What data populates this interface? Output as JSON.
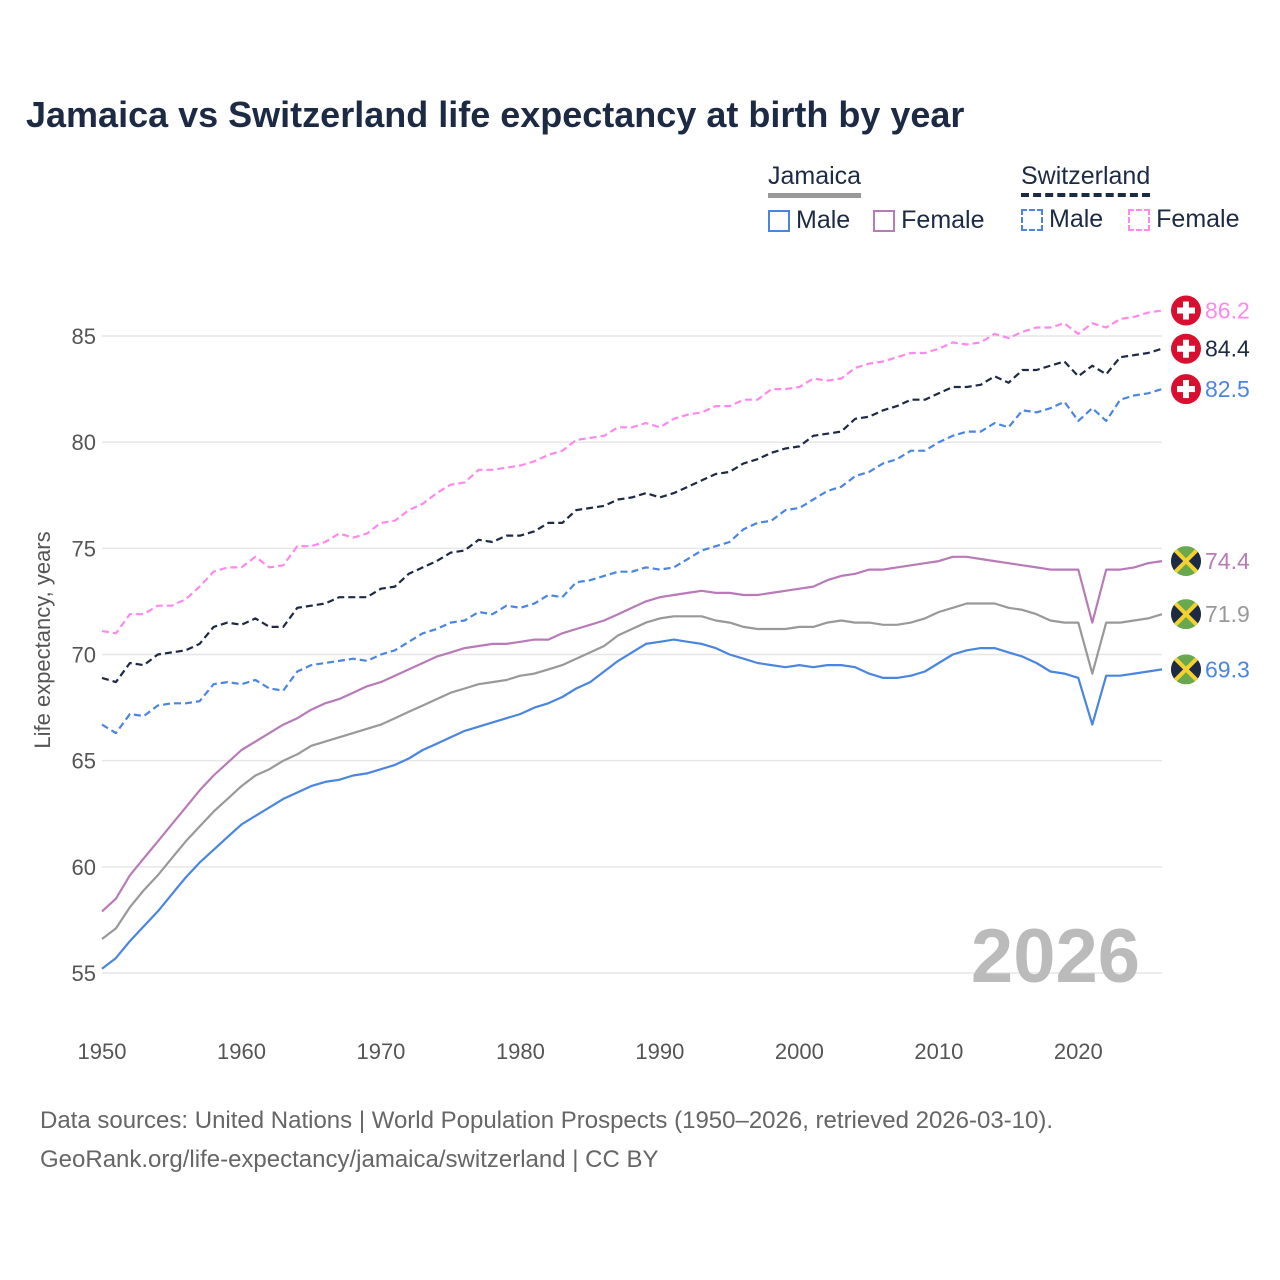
{
  "title": "Jamaica vs Switzerland life expectancy at birth by year",
  "legend": {
    "groups": [
      {
        "name": "Jamaica",
        "items": [
          "Male",
          "Female"
        ]
      },
      {
        "name": "Switzerland",
        "items": [
          "Male",
          "Female"
        ]
      }
    ]
  },
  "big_year": "2026",
  "footer": {
    "line1": "Data sources: United Nations | World Population Prospects (1950–2026, retrieved 2026-03-10).",
    "line2": "GeoRank.org/life-expectancy/jamaica/switzerland | CC BY"
  },
  "chart_data": {
    "type": "line",
    "title": "Jamaica vs Switzerland life expectancy at birth by year",
    "xlabel": "",
    "ylabel": "Life expectancy, years",
    "xlim": [
      1950,
      2026
    ],
    "ylim": [
      53.5,
      87
    ],
    "xticks": [
      1950,
      1960,
      1970,
      1980,
      1990,
      2000,
      2010,
      2020
    ],
    "yticks": [
      55,
      60,
      65,
      70,
      75,
      80,
      85
    ],
    "grid": true,
    "legend_position": "top-right",
    "x_start": 1950,
    "series": [
      {
        "name": "Switzerland Female",
        "country": "Switzerland",
        "color": "#ff88ee",
        "dashed": true,
        "end_label": "86.2",
        "flag": "switzerland",
        "values": [
          71.1,
          71.0,
          71.9,
          71.9,
          72.3,
          72.3,
          72.6,
          73.2,
          73.9,
          74.1,
          74.1,
          74.6,
          74.1,
          74.2,
          75.1,
          75.1,
          75.3,
          75.7,
          75.5,
          75.7,
          76.2,
          76.3,
          76.8,
          77.1,
          77.6,
          78.0,
          78.1,
          78.7,
          78.7,
          78.8,
          78.9,
          79.1,
          79.4,
          79.6,
          80.1,
          80.2,
          80.3,
          80.7,
          80.7,
          80.9,
          80.7,
          81.1,
          81.3,
          81.4,
          81.7,
          81.7,
          82.0,
          82.0,
          82.5,
          82.5,
          82.6,
          83.0,
          82.9,
          83.0,
          83.5,
          83.7,
          83.8,
          84.0,
          84.2,
          84.2,
          84.4,
          84.7,
          84.6,
          84.7,
          85.1,
          84.9,
          85.2,
          85.4,
          85.4,
          85.6,
          85.1,
          85.6,
          85.4,
          85.8,
          85.9,
          86.1,
          86.2
        ]
      },
      {
        "name": "Switzerland",
        "country": "Switzerland",
        "color": "#1c2a44",
        "dashed": true,
        "end_label": "84.4",
        "flag": "switzerland",
        "values": [
          68.9,
          68.7,
          69.6,
          69.5,
          70.0,
          70.1,
          70.2,
          70.5,
          71.3,
          71.5,
          71.4,
          71.7,
          71.3,
          71.3,
          72.2,
          72.3,
          72.4,
          72.7,
          72.7,
          72.7,
          73.1,
          73.2,
          73.8,
          74.1,
          74.4,
          74.8,
          74.9,
          75.4,
          75.3,
          75.6,
          75.6,
          75.8,
          76.2,
          76.2,
          76.8,
          76.9,
          77.0,
          77.3,
          77.4,
          77.6,
          77.4,
          77.6,
          77.9,
          78.2,
          78.5,
          78.6,
          79.0,
          79.2,
          79.5,
          79.7,
          79.8,
          80.3,
          80.4,
          80.5,
          81.1,
          81.2,
          81.5,
          81.7,
          82.0,
          82.0,
          82.3,
          82.6,
          82.6,
          82.7,
          83.1,
          82.8,
          83.4,
          83.4,
          83.6,
          83.8,
          83.1,
          83.6,
          83.2,
          84.0,
          84.1,
          84.2,
          84.4
        ]
      },
      {
        "name": "Switzerland Male",
        "country": "Switzerland",
        "color": "#4a86e0",
        "dashed": true,
        "end_label": "82.5",
        "flag": "switzerland",
        "values": [
          66.7,
          66.3,
          67.2,
          67.1,
          67.6,
          67.7,
          67.7,
          67.8,
          68.6,
          68.7,
          68.6,
          68.8,
          68.4,
          68.3,
          69.2,
          69.5,
          69.6,
          69.7,
          69.8,
          69.7,
          70.0,
          70.2,
          70.6,
          71.0,
          71.2,
          71.5,
          71.6,
          72.0,
          71.9,
          72.3,
          72.2,
          72.4,
          72.8,
          72.7,
          73.4,
          73.5,
          73.7,
          73.9,
          73.9,
          74.1,
          74.0,
          74.1,
          74.5,
          74.9,
          75.1,
          75.3,
          75.9,
          76.2,
          76.3,
          76.8,
          76.9,
          77.3,
          77.7,
          77.9,
          78.4,
          78.6,
          79.0,
          79.2,
          79.6,
          79.6,
          80.0,
          80.3,
          80.5,
          80.5,
          80.9,
          80.7,
          81.5,
          81.4,
          81.6,
          81.9,
          81.0,
          81.6,
          81.0,
          82.0,
          82.2,
          82.3,
          82.5
        ]
      },
      {
        "name": "Jamaica Female",
        "country": "Jamaica",
        "color": "#b87bb8",
        "dashed": false,
        "end_label": "74.4",
        "flag": "jamaica",
        "values": [
          57.9,
          58.5,
          59.6,
          60.4,
          61.2,
          62.0,
          62.8,
          63.6,
          64.3,
          64.9,
          65.5,
          65.9,
          66.3,
          66.7,
          67.0,
          67.4,
          67.7,
          67.9,
          68.2,
          68.5,
          68.7,
          69.0,
          69.3,
          69.6,
          69.9,
          70.1,
          70.3,
          70.4,
          70.5,
          70.5,
          70.6,
          70.7,
          70.7,
          71.0,
          71.2,
          71.4,
          71.6,
          71.9,
          72.2,
          72.5,
          72.7,
          72.8,
          72.9,
          73.0,
          72.9,
          72.9,
          72.8,
          72.8,
          72.9,
          73.0,
          73.1,
          73.2,
          73.5,
          73.7,
          73.8,
          74.0,
          74.0,
          74.1,
          74.2,
          74.3,
          74.4,
          74.6,
          74.6,
          74.5,
          74.4,
          74.3,
          74.2,
          74.1,
          74.0,
          74.0,
          74.0,
          71.5,
          74.0,
          74.0,
          74.1,
          74.3,
          74.4
        ]
      },
      {
        "name": "Jamaica",
        "country": "Jamaica",
        "color": "#999999",
        "dashed": false,
        "end_label": "71.9",
        "flag": "jamaica",
        "values": [
          56.6,
          57.1,
          58.1,
          58.9,
          59.6,
          60.4,
          61.2,
          61.9,
          62.6,
          63.2,
          63.8,
          64.3,
          64.6,
          65.0,
          65.3,
          65.7,
          65.9,
          66.1,
          66.3,
          66.5,
          66.7,
          67.0,
          67.3,
          67.6,
          67.9,
          68.2,
          68.4,
          68.6,
          68.7,
          68.8,
          69.0,
          69.1,
          69.3,
          69.5,
          69.8,
          70.1,
          70.4,
          70.9,
          71.2,
          71.5,
          71.7,
          71.8,
          71.8,
          71.8,
          71.6,
          71.5,
          71.3,
          71.2,
          71.2,
          71.2,
          71.3,
          71.3,
          71.5,
          71.6,
          71.5,
          71.5,
          71.4,
          71.4,
          71.5,
          71.7,
          72.0,
          72.2,
          72.4,
          72.4,
          72.4,
          72.2,
          72.1,
          71.9,
          71.6,
          71.5,
          71.5,
          69.1,
          71.5,
          71.5,
          71.6,
          71.7,
          71.9
        ]
      },
      {
        "name": "Jamaica Male",
        "country": "Jamaica",
        "color": "#4a86e0",
        "dashed": false,
        "end_label": "69.3",
        "flag": "jamaica",
        "values": [
          55.2,
          55.7,
          56.5,
          57.2,
          57.9,
          58.7,
          59.5,
          60.2,
          60.8,
          61.4,
          62.0,
          62.4,
          62.8,
          63.2,
          63.5,
          63.8,
          64.0,
          64.1,
          64.3,
          64.4,
          64.6,
          64.8,
          65.1,
          65.5,
          65.8,
          66.1,
          66.4,
          66.6,
          66.8,
          67.0,
          67.2,
          67.5,
          67.7,
          68.0,
          68.4,
          68.7,
          69.2,
          69.7,
          70.1,
          70.5,
          70.6,
          70.7,
          70.6,
          70.5,
          70.3,
          70.0,
          69.8,
          69.6,
          69.5,
          69.4,
          69.5,
          69.4,
          69.5,
          69.5,
          69.4,
          69.1,
          68.9,
          68.9,
          69.0,
          69.2,
          69.6,
          70.0,
          70.2,
          70.3,
          70.3,
          70.1,
          69.9,
          69.6,
          69.2,
          69.1,
          68.9,
          66.7,
          69.0,
          69.0,
          69.1,
          69.2,
          69.3
        ]
      }
    ]
  }
}
